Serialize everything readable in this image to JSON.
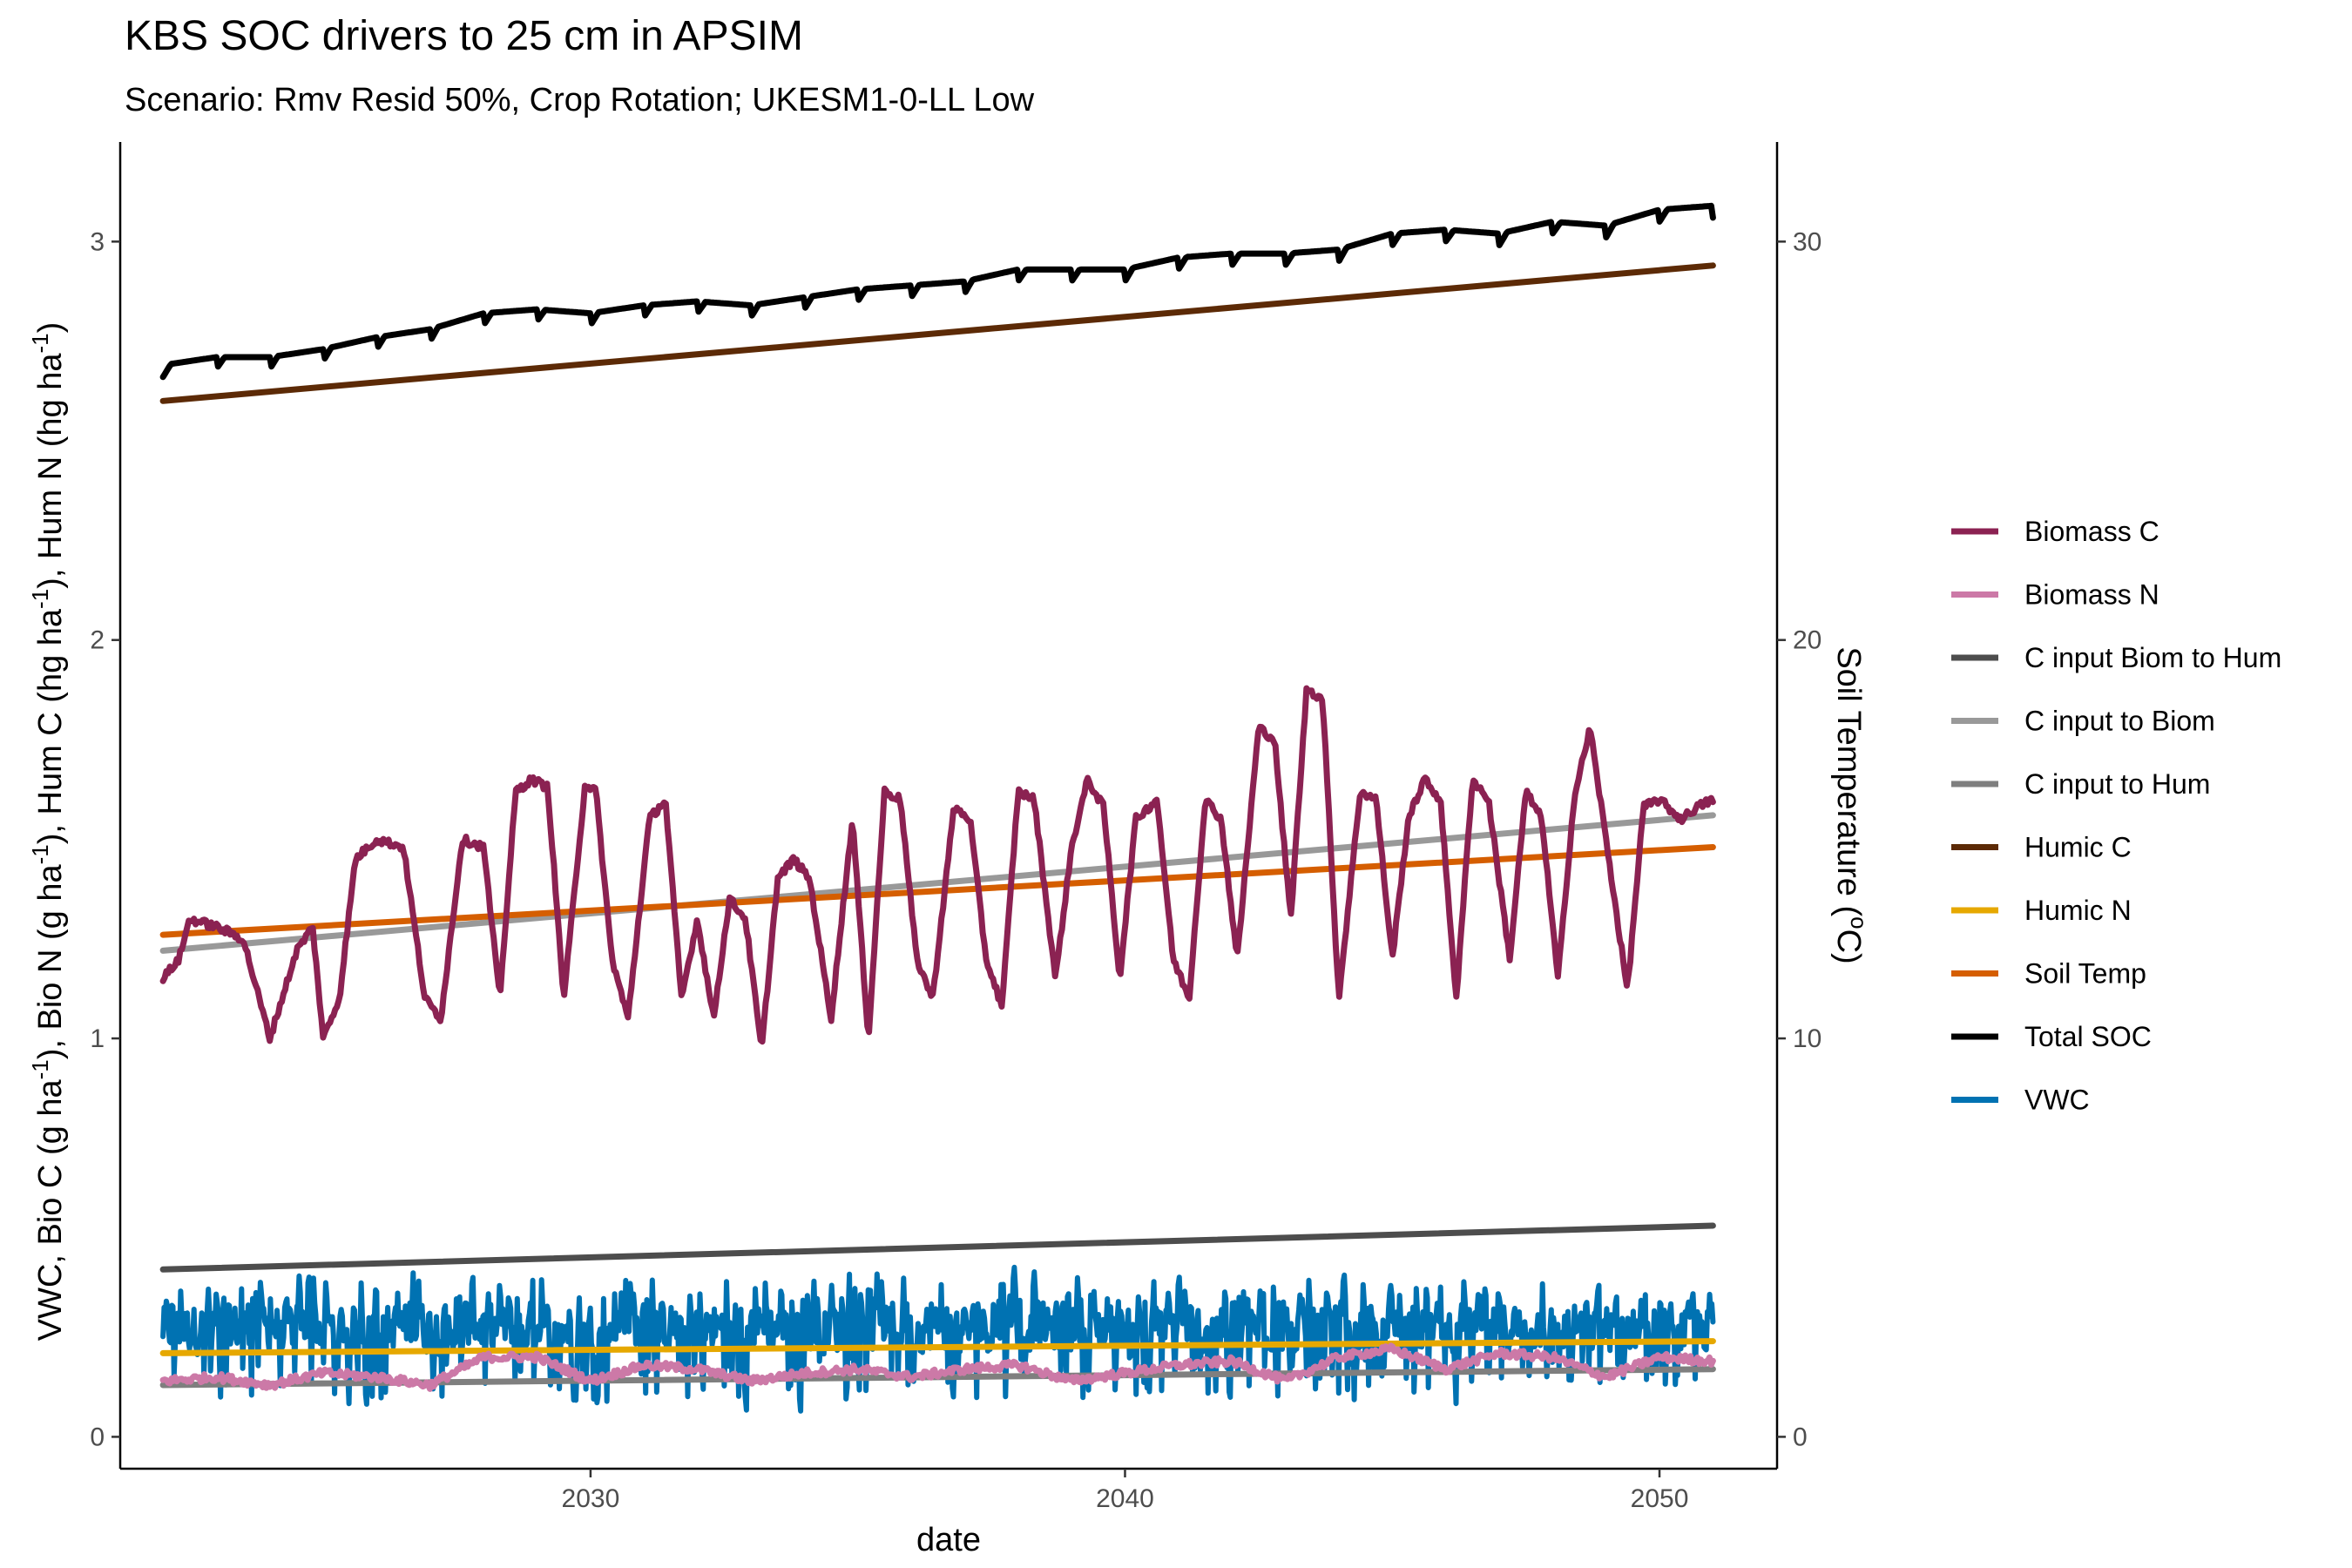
{
  "title": "KBS SOC drivers to 25 cm in APSIM",
  "subtitle": "Scenario: Rmv Resid 50%, Crop Rotation; UKESM1-0-LL Low",
  "chart_data": {
    "type": "line",
    "title": "KBS SOC drivers to 25 cm in APSIM",
    "subtitle": "Scenario: Rmv Resid 50%, Crop Rotation; UKESM1-0-LL Low",
    "xlabel": "date",
    "ylabel": "VWC, Bio C (g ha-1), Bio N (g ha-1), Hum C (hg ha-1), Hum N (hg ha-1)",
    "y2label": "Soil Temperature (°C)",
    "xlim": [
      2021.2,
      2052.2
    ],
    "ylim": [
      -0.08,
      3.25
    ],
    "y2lim": [
      -0.8,
      32.5
    ],
    "x_ticks": [
      2030,
      2040,
      2050
    ],
    "y_ticks": [
      0,
      1,
      2,
      3
    ],
    "y2_ticks": [
      0,
      10,
      20,
      30
    ],
    "grid": false,
    "legend_position": "right",
    "x_range": [
      2022.0,
      2051.0
    ],
    "series": [
      {
        "name": "Biomass C",
        "color": "#8b2252",
        "kind": "seasonal",
        "axis": "left",
        "x": [
          2022.0,
          2022.3,
          2022.5,
          2023.0,
          2023.5,
          2024.0,
          2024.5,
          2024.8,
          2025.0,
          2025.3,
          2025.6,
          2026.0,
          2026.5,
          2026.9,
          2027.2,
          2027.6,
          2028.0,
          2028.3,
          2028.6,
          2028.9,
          2029.2,
          2029.5,
          2029.9,
          2030.1,
          2030.4,
          2030.7,
          2031.1,
          2031.4,
          2031.7,
          2032.0,
          2032.3,
          2032.6,
          2032.9,
          2033.2,
          2033.5,
          2033.8,
          2034.1,
          2034.5,
          2034.9,
          2035.2,
          2035.5,
          2035.8,
          2036.1,
          2036.4,
          2036.8,
          2037.1,
          2037.4,
          2037.7,
          2038.0,
          2038.3,
          2038.7,
          2039.0,
          2039.3,
          2039.6,
          2039.9,
          2040.2,
          2040.6,
          2040.9,
          2041.2,
          2041.5,
          2041.8,
          2042.1,
          2042.5,
          2042.8,
          2043.1,
          2043.4,
          2043.7,
          2044.0,
          2044.4,
          2044.7,
          2045.0,
          2045.3,
          2045.6,
          2045.9,
          2046.2,
          2046.5,
          2046.8,
          2047.2,
          2047.5,
          2047.8,
          2048.1,
          2048.4,
          2048.7,
          2049.0,
          2049.4,
          2049.7,
          2050.0,
          2050.4,
          2050.7,
          2051.0
        ],
        "y": [
          1.15,
          1.2,
          1.3,
          1.28,
          1.25,
          1.0,
          1.22,
          1.28,
          1.0,
          1.1,
          1.45,
          1.5,
          1.48,
          1.1,
          1.05,
          1.5,
          1.48,
          1.1,
          1.62,
          1.65,
          1.63,
          1.1,
          1.64,
          1.62,
          1.2,
          1.05,
          1.55,
          1.6,
          1.1,
          1.3,
          1.05,
          1.35,
          1.3,
          0.97,
          1.4,
          1.45,
          1.4,
          1.05,
          1.55,
          1.0,
          1.62,
          1.6,
          1.2,
          1.1,
          1.58,
          1.55,
          1.2,
          1.08,
          1.62,
          1.6,
          1.15,
          1.48,
          1.65,
          1.58,
          1.15,
          1.55,
          1.6,
          1.2,
          1.1,
          1.6,
          1.55,
          1.2,
          1.78,
          1.75,
          1.3,
          1.88,
          1.85,
          1.1,
          1.62,
          1.6,
          1.2,
          1.55,
          1.65,
          1.6,
          1.1,
          1.65,
          1.6,
          1.2,
          1.62,
          1.55,
          1.15,
          1.6,
          1.78,
          1.5,
          1.12,
          1.58,
          1.6,
          1.55,
          1.58,
          1.6
        ]
      },
      {
        "name": "Biomass N",
        "color": "#cc79a7",
        "kind": "seasonal",
        "axis": "left",
        "x": [
          2022.0,
          2023.0,
          2024.0,
          2025.0,
          2026.0,
          2027.0,
          2028.0,
          2029.0,
          2030.0,
          2031.0,
          2032.0,
          2033.0,
          2034.0,
          2035.0,
          2036.0,
          2037.0,
          2038.0,
          2039.0,
          2040.0,
          2041.0,
          2042.0,
          2043.0,
          2044.0,
          2045.0,
          2046.0,
          2047.0,
          2048.0,
          2049.0,
          2050.0,
          2051.0
        ],
        "y": [
          0.14,
          0.15,
          0.13,
          0.16,
          0.15,
          0.13,
          0.2,
          0.2,
          0.14,
          0.18,
          0.17,
          0.14,
          0.16,
          0.17,
          0.15,
          0.17,
          0.18,
          0.14,
          0.16,
          0.18,
          0.19,
          0.14,
          0.2,
          0.22,
          0.17,
          0.21,
          0.2,
          0.15,
          0.2,
          0.19
        ]
      },
      {
        "name": "C input Biom to Hum",
        "color": "#4d4d4d",
        "kind": "linear",
        "axis": "left",
        "x": [
          2022.0,
          2051.0
        ],
        "y": [
          0.42,
          0.53
        ]
      },
      {
        "name": "C input to Biom",
        "color": "#999999",
        "kind": "linear",
        "axis": "left",
        "x": [
          2022.0,
          2051.0
        ],
        "y": [
          1.22,
          1.56
        ]
      },
      {
        "name": "C input to Hum",
        "color": "#7f7f7f",
        "kind": "linear",
        "axis": "left",
        "x": [
          2022.0,
          2051.0
        ],
        "y": [
          0.13,
          0.17
        ]
      },
      {
        "name": "Humic C",
        "color": "#5c2a06",
        "kind": "linear",
        "axis": "left",
        "x": [
          2022.0,
          2051.0
        ],
        "y": [
          2.6,
          2.94
        ]
      },
      {
        "name": "Humic N",
        "color": "#e6a800",
        "kind": "linear",
        "axis": "left",
        "x": [
          2022.0,
          2051.0
        ],
        "y": [
          0.21,
          0.24
        ]
      },
      {
        "name": "Soil Temp",
        "color": "#d55e00",
        "kind": "linear",
        "axis": "right",
        "x": [
          2022.0,
          2051.0
        ],
        "y": [
          12.6,
          14.8
        ]
      },
      {
        "name": "Total SOC",
        "color": "#000000",
        "kind": "seasonal",
        "axis": "left",
        "x": [
          2022.0,
          2023.0,
          2024.0,
          2025.0,
          2026.0,
          2027.0,
          2028.0,
          2029.0,
          2030.0,
          2031.0,
          2032.0,
          2033.0,
          2034.0,
          2035.0,
          2036.0,
          2037.0,
          2038.0,
          2039.0,
          2040.0,
          2041.0,
          2042.0,
          2043.0,
          2044.0,
          2045.0,
          2046.0,
          2047.0,
          2048.0,
          2049.0,
          2050.0,
          2051.0
        ],
        "y": [
          2.69,
          2.71,
          2.71,
          2.73,
          2.76,
          2.78,
          2.82,
          2.83,
          2.82,
          2.84,
          2.85,
          2.84,
          2.86,
          2.88,
          2.89,
          2.9,
          2.93,
          2.93,
          2.93,
          2.96,
          2.97,
          2.97,
          2.98,
          3.02,
          3.03,
          3.02,
          3.05,
          3.04,
          3.08,
          3.09
        ]
      },
      {
        "name": "VWC",
        "color": "#0072b2",
        "kind": "noise",
        "axis": "left",
        "x": [
          2022.0,
          2051.0
        ],
        "y_min": 0.04,
        "y_max": 0.44,
        "y_mean": 0.27
      }
    ]
  }
}
